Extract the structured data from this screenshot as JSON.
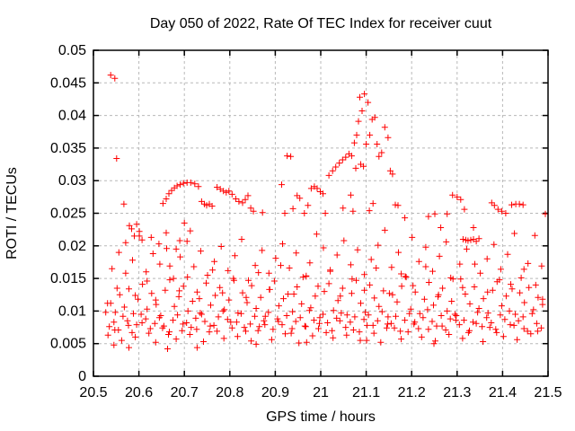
{
  "chart_data": {
    "type": "scatter",
    "title": "Day 050 of 2022, Rate Of TEC Index for receiver cuut",
    "xlabel": "GPS time / hours",
    "ylabel": "ROTI / TECUs",
    "xlim": [
      20.5,
      21.5
    ],
    "ylim": [
      0,
      0.05
    ],
    "xticks": [
      20.5,
      20.6,
      20.7,
      20.8,
      20.9,
      21.0,
      21.1,
      21.2,
      21.3,
      21.4,
      21.5
    ],
    "xtick_labels": [
      "20.5",
      "20.6",
      "20.7",
      "20.8",
      "20.9",
      "21",
      "21.1",
      "21.2",
      "21.3",
      "21.4",
      "21.5"
    ],
    "yticks": [
      0,
      0.005,
      0.01,
      0.015,
      0.02,
      0.025,
      0.03,
      0.035,
      0.04,
      0.045,
      0.05
    ],
    "ytick_labels": [
      "0",
      "0.005",
      "0.01",
      "0.015",
      "0.02",
      "0.025",
      "0.03",
      "0.035",
      "0.04",
      "0.045",
      "0.05"
    ],
    "grid": true,
    "grid_style": "dashed",
    "legend": "none",
    "marker": "plus",
    "colors": {
      "marker": "#ff0000",
      "grid": "#b8b8b8",
      "axis": "#000000",
      "text": "#000000",
      "background": "#ffffff"
    },
    "series": [
      {
        "name": "ROTI",
        "sampled_traces": [
          {
            "x0": 20.535,
            "dx": 0.01,
            "y": [
              0.0076,
              0.0083,
              0.0071,
              0.0092,
              0.0085,
              0.0067,
              0.0079,
              0.0095,
              0.0088,
              0.0073,
              0.0081,
              0.009,
              0.0077,
              0.0064,
              0.0086,
              0.0094,
              0.007,
              0.0082,
              0.0075,
              0.0089,
              0.0097,
              0.0084,
              0.0068,
              0.0078,
              0.0091,
              0.01,
              0.0087,
              0.0074,
              0.0083,
              0.0096,
              0.0069,
              0.008,
              0.0092,
              0.0076,
              0.0085,
              0.0098,
              0.0072,
              0.0088,
              0.0079,
              0.0093,
              0.0066,
              0.0084,
              0.009,
              0.0077,
              0.0101,
              0.0086,
              0.0073,
              0.0095,
              0.0082,
              0.007,
              0.0089,
              0.0097,
              0.0075,
              0.0083,
              0.0091,
              0.0068,
              0.0087,
              0.0094,
              0.0078,
              0.0085,
              0.0099,
              0.0074,
              0.0081,
              0.0092,
              0.0069,
              0.0086,
              0.0096,
              0.008,
              0.0073,
              0.009,
              0.0102,
              0.0084,
              0.0077,
              0.0093,
              0.0071,
              0.0088,
              0.0095,
              0.0079,
              0.0086,
              0.0067,
              0.0083,
              0.0098,
              0.0076,
              0.009,
              0.0082,
              0.0072,
              0.0094,
              0.0087,
              0.01,
              0.0078,
              0.0085,
              0.0091,
              0.0069,
              0.0096,
              0.0081,
              0.0074
            ]
          },
          {
            "x0": 20.538,
            "dx": 0.01,
            "y": [
              0.0112,
              0.0098,
              0.0125,
              0.0106,
              0.0134,
              0.0096,
              0.0118,
              0.0141,
              0.0103,
              0.0127,
              0.011,
              0.0093,
              0.0132,
              0.0148,
              0.0107,
              0.0122,
              0.0138,
              0.01,
              0.0115,
              0.0129,
              0.0095,
              0.0143,
              0.0109,
              0.0124,
              0.0136,
              0.0102,
              0.0117,
              0.015,
              0.0097,
              0.0128,
              0.0113,
              0.0139,
              0.0104,
              0.0121,
              0.0092,
              0.0133,
              0.0146,
              0.0108,
              0.0119,
              0.0126,
              0.0099,
              0.0137,
              0.0111,
              0.0153,
              0.0105,
              0.0123,
              0.009,
              0.013,
              0.0142,
              0.0101,
              0.0116,
              0.0135,
              0.0094,
              0.0127,
              0.0147,
              0.0112,
              0.0098,
              0.014,
              0.012,
              0.0107,
              0.0131,
              0.0091,
              0.0125,
              0.0114,
              0.0138,
              0.0152,
              0.0103,
              0.0129,
              0.0096,
              0.0118,
              0.0144,
              0.0109,
              0.0122,
              0.0135,
              0.01,
              0.0115,
              0.0093,
              0.0149,
              0.0126,
              0.0111,
              0.0137,
              0.0104,
              0.0119,
              0.0097,
              0.0132,
              0.0145,
              0.0108,
              0.0123,
              0.0141,
              0.0095,
              0.0128,
              0.0113,
              0.0136,
              0.0102,
              0.0121,
              0.011
            ]
          },
          {
            "x0": 20.532,
            "dx": 0.015,
            "y": [
              0.0063,
              0.0071,
              0.0055,
              0.0078,
              0.006,
              0.0082,
              0.0066,
              0.0052,
              0.0074,
              0.0068,
              0.0057,
              0.008,
              0.0064,
              0.0072,
              0.0053,
              0.0077,
              0.0069,
              0.0058,
              0.0083,
              0.0061,
              0.0075,
              0.0054,
              0.007,
              0.0079,
              0.0056,
              0.0084,
              0.0065,
              0.0073,
              0.0051,
              0.0076,
              0.0062,
              0.0081,
              0.0067,
              0.0059,
              0.0085,
              0.0063,
              0.0071,
              0.0055,
              0.0078,
              0.0066,
              0.0052,
              0.008,
              0.0074,
              0.0057,
              0.0068,
              0.0083,
              0.006,
              0.0072,
              0.0054,
              0.0077,
              0.0064,
              0.0086,
              0.0058,
              0.007,
              0.0081,
              0.0053,
              0.0075,
              0.0067,
              0.0061,
              0.0079,
              0.0056,
              0.0073,
              0.0065,
              0.0069
            ]
          },
          {
            "x0": 20.541,
            "dx": 0.015,
            "y": [
              0.0165,
              0.019,
              0.0205,
              0.0178,
              0.0215,
              0.016,
              0.0188,
              0.0172,
              0.0196,
              0.015,
              0.0183,
              0.0207,
              0.0168,
              0.0192,
              0.0155,
              0.0176,
              0.0199,
              0.0162,
              0.0185,
              0.021,
              0.0147,
              0.017,
              0.0193,
              0.0158,
              0.0181,
              0.0203,
              0.0166,
              0.0189,
              0.0152,
              0.0174,
              0.0218,
              0.0197,
              0.0163,
              0.0186,
              0.0208,
              0.0171,
              0.0194,
              0.0156,
              0.0179,
              0.0201,
              0.0224,
              0.0167,
              0.019,
              0.0153,
              0.0213,
              0.0176,
              0.0198,
              0.0161,
              0.0184,
              0.0206,
              0.0149,
              0.0172,
              0.0195,
              0.0228,
              0.0158,
              0.018,
              0.0202,
              0.0164,
              0.0187,
              0.0219,
              0.0151,
              0.0173,
              0.0216,
              0.0169
            ]
          }
        ],
        "points": [
          [
            20.538,
            0.0462
          ],
          [
            20.547,
            0.0457
          ],
          [
            20.551,
            0.0334
          ],
          [
            20.567,
            0.0264
          ],
          [
            20.579,
            0.0231
          ],
          [
            20.584,
            0.0226
          ],
          [
            20.59,
            0.0215
          ],
          [
            20.595,
            0.0233
          ],
          [
            20.601,
            0.0222
          ],
          [
            20.607,
            0.0209
          ],
          [
            20.627,
            0.0213
          ],
          [
            20.644,
            0.0203
          ],
          [
            20.66,
            0.022
          ],
          [
            20.682,
            0.0195
          ],
          [
            20.69,
            0.0208
          ],
          [
            20.7,
            0.0235
          ],
          [
            20.713,
            0.0223
          ],
          [
            20.653,
            0.0265
          ],
          [
            20.66,
            0.0272
          ],
          [
            20.666,
            0.028
          ],
          [
            20.672,
            0.0285
          ],
          [
            20.678,
            0.0289
          ],
          [
            20.684,
            0.0292
          ],
          [
            20.691,
            0.0294
          ],
          [
            20.698,
            0.0296
          ],
          [
            20.706,
            0.0297
          ],
          [
            20.714,
            0.0297
          ],
          [
            20.723,
            0.0295
          ],
          [
            20.731,
            0.0291
          ],
          [
            20.738,
            0.0268
          ],
          [
            20.744,
            0.0264
          ],
          [
            20.749,
            0.0262
          ],
          [
            20.755,
            0.0264
          ],
          [
            20.761,
            0.0261
          ],
          [
            20.772,
            0.029
          ],
          [
            20.779,
            0.0287
          ],
          [
            20.786,
            0.0284
          ],
          [
            20.792,
            0.0282
          ],
          [
            20.798,
            0.0284
          ],
          [
            20.805,
            0.0279
          ],
          [
            20.813,
            0.0272
          ],
          [
            20.82,
            0.0268
          ],
          [
            20.828,
            0.0266
          ],
          [
            20.834,
            0.0271
          ],
          [
            20.84,
            0.0277
          ],
          [
            20.846,
            0.0258
          ],
          [
            20.852,
            0.0253
          ],
          [
            20.872,
            0.0251
          ],
          [
            20.914,
            0.0294
          ],
          [
            20.926,
            0.0338
          ],
          [
            20.934,
            0.0337
          ],
          [
            20.921,
            0.025
          ],
          [
            20.939,
            0.0257
          ],
          [
            20.948,
            0.0277
          ],
          [
            20.954,
            0.0273
          ],
          [
            20.964,
            0.025
          ],
          [
            20.972,
            0.0262
          ],
          [
            20.979,
            0.0288
          ],
          [
            20.986,
            0.0291
          ],
          [
            20.992,
            0.0288
          ],
          [
            20.999,
            0.0283
          ],
          [
            21.005,
            0.028
          ],
          [
            21.01,
            0.025
          ],
          [
            21.018,
            0.0308
          ],
          [
            21.026,
            0.0315
          ],
          [
            21.033,
            0.0321
          ],
          [
            21.041,
            0.0327
          ],
          [
            21.048,
            0.0332
          ],
          [
            21.055,
            0.0336
          ],
          [
            21.062,
            0.0341
          ],
          [
            21.068,
            0.0338
          ],
          [
            21.049,
            0.0258
          ],
          [
            21.066,
            0.0278
          ],
          [
            21.071,
            0.0253
          ],
          [
            21.074,
            0.0358
          ],
          [
            21.079,
            0.037
          ],
          [
            21.083,
            0.0391
          ],
          [
            21.086,
            0.0428
          ],
          [
            21.091,
            0.0407
          ],
          [
            21.096,
            0.0433
          ],
          [
            21.1,
            0.0356
          ],
          [
            21.104,
            0.042
          ],
          [
            21.108,
            0.037
          ],
          [
            21.113,
            0.0394
          ],
          [
            21.119,
            0.0397
          ],
          [
            21.124,
            0.0356
          ],
          [
            21.128,
            0.0337
          ],
          [
            21.134,
            0.0343
          ],
          [
            21.141,
            0.0382
          ],
          [
            21.148,
            0.0366
          ],
          [
            21.153,
            0.0315
          ],
          [
            21.158,
            0.031
          ],
          [
            21.164,
            0.0263
          ],
          [
            21.17,
            0.0262
          ],
          [
            21.077,
            0.0319
          ],
          [
            21.088,
            0.0325
          ],
          [
            21.094,
            0.0322
          ],
          [
            21.107,
            0.0254
          ],
          [
            21.115,
            0.0265
          ],
          [
            21.185,
            0.0243
          ],
          [
            21.237,
            0.0245
          ],
          [
            21.251,
            0.0249
          ],
          [
            21.264,
            0.0228
          ],
          [
            21.278,
            0.0249
          ],
          [
            21.29,
            0.0278
          ],
          [
            21.3,
            0.0275
          ],
          [
            21.308,
            0.0271
          ],
          [
            21.316,
            0.0256
          ],
          [
            21.376,
            0.0266
          ],
          [
            21.382,
            0.0262
          ],
          [
            21.39,
            0.0256
          ],
          [
            21.398,
            0.0253
          ],
          [
            21.407,
            0.025
          ],
          [
            21.42,
            0.0263
          ],
          [
            21.429,
            0.0264
          ],
          [
            21.437,
            0.0264
          ],
          [
            21.445,
            0.0263
          ],
          [
            21.494,
            0.0249
          ],
          [
            21.313,
            0.021
          ],
          [
            21.319,
            0.0209
          ],
          [
            21.324,
            0.0208
          ],
          [
            21.33,
            0.0209
          ],
          [
            21.336,
            0.021
          ],
          [
            21.342,
            0.0207
          ],
          [
            21.348,
            0.0211
          ],
          [
            20.545,
            0.0048
          ],
          [
            20.578,
            0.0044
          ],
          [
            20.663,
            0.0042
          ],
          [
            20.728,
            0.0044
          ],
          [
            20.858,
            0.0049
          ],
          [
            21.249,
            0.005
          ],
          [
            20.969,
            0.0052
          ],
          [
            21.101,
            0.0055
          ],
          [
            20.531,
            0.0112
          ],
          [
            20.552,
            0.0135
          ],
          [
            20.571,
            0.0158
          ],
          [
            20.592,
            0.0124
          ],
          [
            20.618,
            0.0146
          ],
          [
            20.637,
            0.0117
          ],
          [
            20.668,
            0.0169
          ],
          [
            20.689,
            0.0131
          ],
          [
            20.707,
            0.0152
          ],
          [
            20.733,
            0.0119
          ],
          [
            20.762,
            0.0163
          ],
          [
            20.784,
            0.0128
          ],
          [
            20.809,
            0.0147
          ],
          [
            20.836,
            0.0121
          ],
          [
            20.863,
            0.0159
          ],
          [
            20.887,
            0.0133
          ],
          [
            20.912,
            0.017
          ],
          [
            20.941,
            0.0126
          ],
          [
            20.968,
            0.0154
          ],
          [
            20.994,
            0.0138
          ],
          [
            21.021,
            0.0161
          ],
          [
            21.043,
            0.0123
          ],
          [
            21.069,
            0.0149
          ],
          [
            21.096,
            0.0132
          ],
          [
            21.122,
            0.0166
          ],
          [
            21.151,
            0.0127
          ],
          [
            21.177,
            0.0157
          ],
          [
            21.203,
            0.0139
          ],
          [
            21.231,
            0.0168
          ],
          [
            21.259,
            0.0125
          ],
          [
            21.286,
            0.0151
          ],
          [
            21.312,
            0.0136
          ],
          [
            21.339,
            0.0172
          ],
          [
            21.367,
            0.0129
          ],
          [
            21.393,
            0.0148
          ],
          [
            21.421,
            0.0134
          ],
          [
            21.447,
            0.0164
          ],
          [
            21.473,
            0.014
          ],
          [
            21.488,
            0.0118
          ],
          [
            20.527,
            0.0098
          ]
        ]
      }
    ]
  }
}
